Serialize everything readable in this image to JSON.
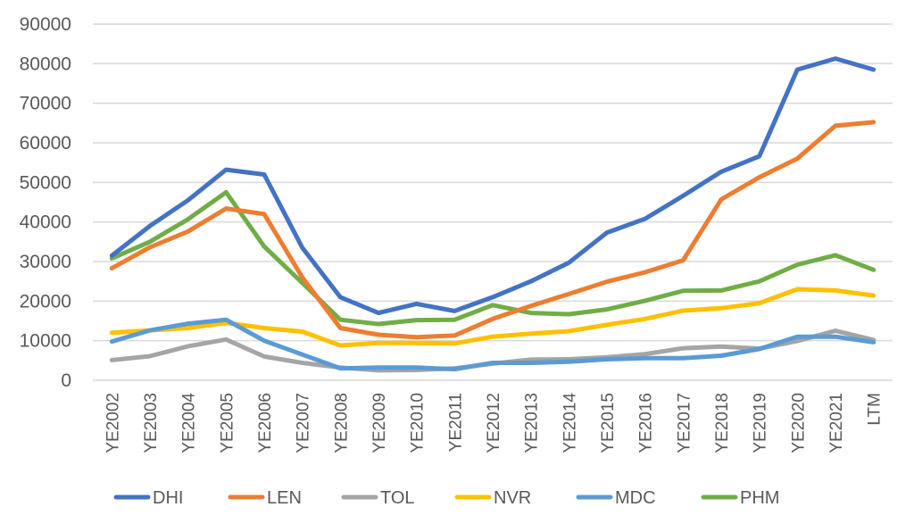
{
  "chart_data": {
    "type": "line",
    "title": "",
    "xlabel": "",
    "ylabel": "",
    "ylim": [
      0,
      90000
    ],
    "yticks": [
      0,
      10000,
      20000,
      30000,
      40000,
      50000,
      60000,
      70000,
      80000,
      90000
    ],
    "ytick_labels": [
      "0",
      "10000",
      "20000",
      "30000",
      "40000",
      "50000",
      "60000",
      "70000",
      "80000",
      "90000"
    ],
    "grid": true,
    "legend_position": "bottom",
    "categories": [
      "YE2002",
      "YE2003",
      "YE2004",
      "YE2005",
      "YE2006",
      "YE2007",
      "YE2008",
      "YE2009",
      "YE2010",
      "YE2011",
      "YE2012",
      "YE2013",
      "YE2014",
      "YE2015",
      "YE2016",
      "YE2017",
      "YE2018",
      "YE2019",
      "YE2020",
      "YE2021",
      "LTM"
    ],
    "series": [
      {
        "name": "DHI",
        "color": "#4472c4",
        "values": [
          31500,
          39000,
          45500,
          53200,
          52000,
          33500,
          21000,
          17000,
          19300,
          17500,
          21000,
          25000,
          29700,
          37300,
          40800,
          46600,
          52700,
          56600,
          78500,
          81300,
          78500
        ]
      },
      {
        "name": "LEN",
        "color": "#ed7d31",
        "values": [
          28300,
          33600,
          37600,
          43400,
          42000,
          26000,
          13200,
          11500,
          10900,
          11300,
          15500,
          18800,
          21800,
          24900,
          27300,
          30300,
          45700,
          51300,
          56000,
          64300,
          65200
        ]
      },
      {
        "name": "TOL",
        "color": "#a5a5a5",
        "values": [
          5100,
          6100,
          8600,
          10300,
          6000,
          4400,
          3200,
          2500,
          2600,
          3000,
          4200,
          5200,
          5300,
          5800,
          6600,
          8100,
          8500,
          8000,
          9900,
          12500,
          10200
        ]
      },
      {
        "name": "NVR",
        "color": "#ffc000",
        "values": [
          12000,
          12600,
          13200,
          14500,
          13200,
          12300,
          8800,
          9400,
          9400,
          9300,
          11000,
          11800,
          12400,
          14000,
          15500,
          17600,
          18200,
          19500,
          23000,
          22700,
          21400
        ]
      },
      {
        "name": "MDC",
        "color": "#5b9bd5",
        "values": [
          9800,
          12600,
          14300,
          15300,
          10000,
          6500,
          3000,
          3200,
          3200,
          2800,
          4400,
          4400,
          4700,
          5300,
          5600,
          5600,
          6200,
          7900,
          11000,
          11000,
          9600
        ]
      },
      {
        "name": "PHM",
        "color": "#70ad47",
        "values": [
          30800,
          35000,
          40700,
          47500,
          33800,
          24600,
          15300,
          14200,
          15200,
          15300,
          19000,
          17000,
          16700,
          17900,
          20100,
          22600,
          22700,
          25000,
          29200,
          31600,
          27900
        ]
      }
    ]
  }
}
